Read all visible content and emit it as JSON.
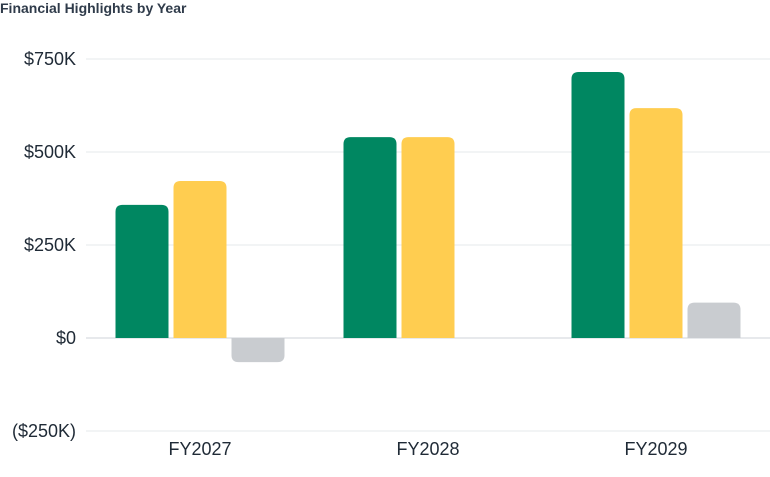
{
  "chart_data": {
    "type": "bar",
    "title": "Financial Highlights by Year",
    "categories": [
      "FY2027",
      "FY2028",
      "FY2029"
    ],
    "series": [
      {
        "color": "#008761",
        "values": [
          358000,
          540000,
          715000
        ]
      },
      {
        "color": "#ffcd50",
        "values": [
          422000,
          540000,
          618000
        ]
      },
      {
        "color": "#c9ccd0",
        "values": [
          -65000,
          0,
          95000
        ]
      }
    ],
    "ylim": [
      -250000,
      750000
    ],
    "y_ticks": [
      {
        "value": 750000,
        "label": "$750K"
      },
      {
        "value": 500000,
        "label": "$500K"
      },
      {
        "value": 250000,
        "label": "$250K"
      },
      {
        "value": 0,
        "label": "$0"
      },
      {
        "value": -250000,
        "label": "($250K)"
      }
    ],
    "grid": true,
    "xlabel": "",
    "ylabel": ""
  }
}
